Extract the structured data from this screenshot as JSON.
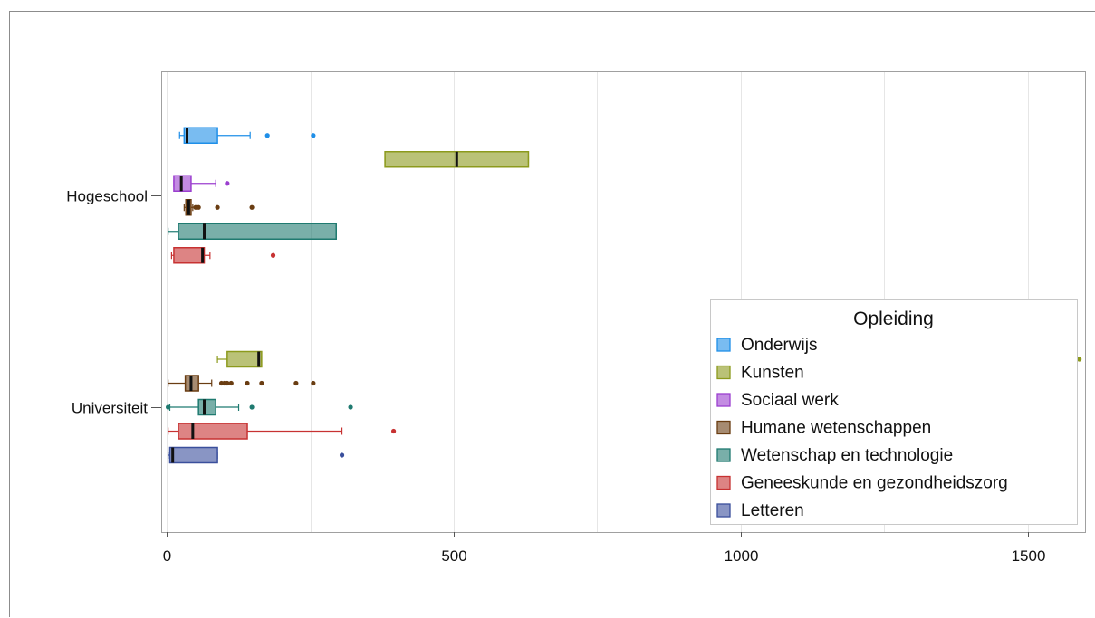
{
  "chart_data": {
    "type": "boxplot",
    "orientation": "horizontal",
    "title": "",
    "xlabel": "",
    "ylabel": "",
    "xlim": [
      -10,
      1600
    ],
    "x_ticks": [
      0,
      500,
      1000,
      1500
    ],
    "x_tick_labels": [
      "0",
      "500",
      "1000",
      "1500"
    ],
    "grid": true,
    "categories": [
      "Hogeschool",
      "Universiteit"
    ],
    "legend": {
      "title": "Opleiding",
      "placement": "bottom-right",
      "entries": [
        "Onderwijs",
        "Kunsten",
        "Sociaal werk",
        "Humane wetenschappen",
        "Wetenschap en technologie",
        "Geneeskunde en gezondheidszorg",
        "Letteren"
      ]
    },
    "series": [
      {
        "name": "Onderwijs",
        "color": "#1f8fe8",
        "boxes": [
          {
            "category": "Hogeschool",
            "whisker_low": 22,
            "q1": 30,
            "median": 35,
            "q3": 88,
            "whisker_high": 145,
            "outliers": [
              175,
              255
            ]
          }
        ]
      },
      {
        "name": "Kunsten",
        "color": "#8c9a1c",
        "boxes": [
          {
            "category": "Hogeschool",
            "whisker_low": 380,
            "q1": 380,
            "median": 505,
            "q3": 630,
            "whisker_high": 630,
            "outliers": []
          },
          {
            "category": "Universiteit",
            "whisker_low": 88,
            "q1": 105,
            "median": 160,
            "q3": 165,
            "whisker_high": 165,
            "outliers": [
              1400,
              1590
            ]
          }
        ]
      },
      {
        "name": "Sociaal werk",
        "color": "#9b3fcf",
        "boxes": [
          {
            "category": "Hogeschool",
            "whisker_low": 12,
            "q1": 12,
            "median": 25,
            "q3": 42,
            "whisker_high": 85,
            "outliers": [
              105
            ]
          }
        ]
      },
      {
        "name": "Humane wetenschappen",
        "color": "#6a3d12",
        "boxes": [
          {
            "category": "Hogeschool",
            "whisker_low": 30,
            "q1": 33,
            "median": 38,
            "q3": 42,
            "whisker_high": 45,
            "outliers": [
              50,
              55,
              88,
              148
            ]
          },
          {
            "category": "Universiteit",
            "whisker_low": 2,
            "q1": 32,
            "median": 42,
            "q3": 55,
            "whisker_high": 78,
            "outliers": [
              95,
              100,
              105,
              112,
              140,
              165,
              225,
              255
            ]
          }
        ]
      },
      {
        "name": "Wetenschap en technologie",
        "color": "#1f7a70",
        "boxes": [
          {
            "category": "Hogeschool",
            "whisker_low": 2,
            "q1": 20,
            "median": 65,
            "q3": 295,
            "whisker_high": 295,
            "outliers": []
          },
          {
            "category": "Universiteit",
            "whisker_low": 5,
            "q1": 55,
            "median": 65,
            "q3": 85,
            "whisker_high": 125,
            "outliers": [
              2,
              148,
              320
            ]
          }
        ]
      },
      {
        "name": "Geneeskunde en gezondheidszorg",
        "color": "#c73232",
        "boxes": [
          {
            "category": "Hogeschool",
            "whisker_low": 8,
            "q1": 12,
            "median": 62,
            "q3": 65,
            "whisker_high": 75,
            "outliers": [
              185
            ]
          },
          {
            "category": "Universiteit",
            "whisker_low": 2,
            "q1": 20,
            "median": 45,
            "q3": 140,
            "whisker_high": 305,
            "outliers": [
              395
            ]
          }
        ]
      },
      {
        "name": "Letteren",
        "color": "#3a4f9c",
        "boxes": [
          {
            "category": "Universiteit",
            "whisker_low": 2,
            "q1": 5,
            "median": 10,
            "q3": 88,
            "whisker_high": 88,
            "outliers": [
              305
            ]
          }
        ]
      }
    ]
  }
}
